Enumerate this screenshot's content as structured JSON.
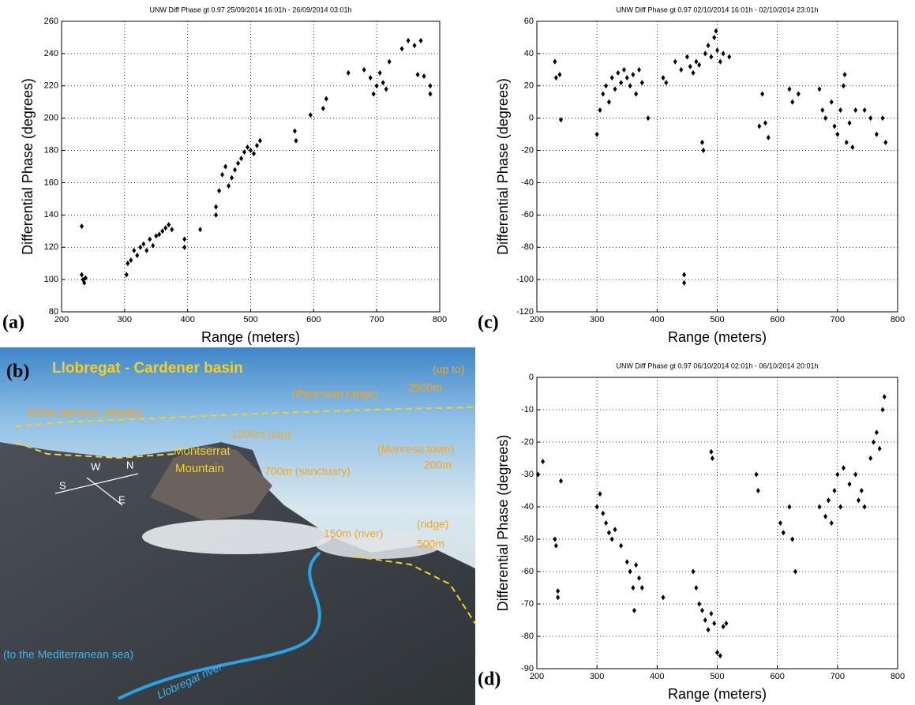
{
  "chart_data": [
    {
      "type": "scatter",
      "panel_label": "(a)",
      "title": "UNW Diff Phase gt 0.97 25/09/2014 16:01h - 26/09/2014 03:01h",
      "xlabel": "Range (meters)",
      "ylabel": "Differential  Phase (degrees)",
      "color": "#000000",
      "grid": true,
      "xlim": [
        200,
        800
      ],
      "ylim": [
        80,
        260
      ],
      "xticks": [
        200,
        300,
        400,
        500,
        600,
        700,
        800
      ],
      "yticks": [
        80,
        100,
        120,
        140,
        160,
        180,
        200,
        220,
        240,
        260
      ],
      "x": [
        232,
        232,
        234,
        236,
        238,
        303,
        305,
        310,
        315,
        320,
        325,
        330,
        335,
        340,
        345,
        350,
        355,
        360,
        365,
        370,
        375,
        395,
        395,
        420,
        445,
        445,
        450,
        455,
        460,
        465,
        470,
        475,
        480,
        485,
        490,
        495,
        500,
        505,
        510,
        515,
        570,
        572,
        595,
        615,
        620,
        655,
        680,
        690,
        695,
        700,
        705,
        710,
        715,
        720,
        740,
        750,
        760,
        770,
        765,
        775,
        785,
        785
      ],
      "values": [
        133,
        103,
        100,
        98,
        101,
        103,
        110,
        112,
        118,
        115,
        120,
        122,
        118,
        125,
        121,
        127,
        128,
        130,
        132,
        134,
        131,
        125,
        120,
        131,
        140,
        145,
        155,
        165,
        170,
        158,
        163,
        168,
        172,
        175,
        179,
        182,
        180,
        178,
        183,
        186,
        192,
        186,
        202,
        206,
        212,
        228,
        230,
        225,
        215,
        220,
        228,
        222,
        218,
        235,
        243,
        248,
        245,
        248,
        227,
        226,
        220,
        215
      ]
    },
    {
      "type": "scatter",
      "panel_label": "(c)",
      "title": "UNW Diff Phase gt 0.97 02/10/2014 16:01h - 02/10/2014 23:01h",
      "xlabel": "Range (meters)",
      "ylabel": "Differential  Phase (degrees)",
      "color": "#000000",
      "grid": true,
      "xlim": [
        200,
        800
      ],
      "ylim": [
        -120,
        60
      ],
      "xticks": [
        200,
        300,
        400,
        500,
        600,
        700,
        800
      ],
      "yticks": [
        -120,
        -100,
        -80,
        -60,
        -40,
        -20,
        0,
        20,
        40,
        60
      ],
      "x": [
        230,
        232,
        238,
        240,
        300,
        305,
        310,
        315,
        320,
        325,
        330,
        335,
        340,
        345,
        350,
        355,
        360,
        365,
        370,
        375,
        385,
        410,
        415,
        430,
        440,
        450,
        455,
        460,
        465,
        470,
        475,
        477,
        480,
        485,
        490,
        495,
        498,
        500,
        505,
        510,
        520,
        570,
        575,
        580,
        585,
        620,
        625,
        635,
        670,
        675,
        680,
        690,
        695,
        700,
        705,
        710,
        712,
        715,
        720,
        725,
        730,
        745,
        755,
        765,
        775,
        780,
        445,
        445
      ],
      "values": [
        35,
        25,
        27,
        -1,
        -10,
        5,
        15,
        20,
        10,
        25,
        18,
        28,
        22,
        30,
        25,
        20,
        27,
        15,
        30,
        22,
        0,
        25,
        22,
        35,
        30,
        38,
        32,
        28,
        35,
        33,
        -15,
        -20,
        40,
        45,
        38,
        50,
        54,
        42,
        35,
        40,
        38,
        -5,
        15,
        -3,
        -12,
        18,
        10,
        15,
        18,
        5,
        0,
        10,
        -5,
        -10,
        5,
        20,
        27,
        -15,
        -3,
        -18,
        5,
        5,
        0,
        -10,
        0,
        -15,
        -97,
        -102
      ]
    },
    {
      "type": "scatter",
      "panel_label": "(d)",
      "title": "UNW Diff Phase gt 0.97 06/10/2014 02:01h - 06/10/2014 20:01h",
      "xlabel": "Range (meters)",
      "ylabel": "Differential  Phase (degrees)",
      "color": "#000000",
      "grid": true,
      "xlim": [
        200,
        800
      ],
      "ylim": [
        -90,
        0
      ],
      "xticks": [
        200,
        300,
        400,
        500,
        600,
        700,
        800
      ],
      "yticks": [
        -90,
        -80,
        -70,
        -60,
        -50,
        -40,
        -30,
        -20,
        -10,
        0
      ],
      "x": [
        202,
        210,
        230,
        232,
        235,
        235,
        240,
        300,
        305,
        310,
        315,
        320,
        325,
        330,
        340,
        350,
        355,
        360,
        362,
        365,
        370,
        375,
        410,
        460,
        465,
        470,
        475,
        480,
        485,
        490,
        495,
        500,
        505,
        510,
        515,
        490,
        492,
        565,
        568,
        605,
        610,
        620,
        625,
        630,
        670,
        680,
        685,
        690,
        695,
        700,
        705,
        710,
        720,
        730,
        735,
        740,
        745,
        755,
        760,
        765,
        770,
        775,
        778
      ],
      "values": [
        -30,
        -26,
        -50,
        -52,
        -66,
        -68,
        -32,
        -40,
        -36,
        -42,
        -45,
        -48,
        -50,
        -47,
        -52,
        -57,
        -60,
        -65,
        -72,
        -58,
        -62,
        -65,
        -68,
        -60,
        -65,
        -70,
        -72,
        -75,
        -78,
        -73,
        -76,
        -85,
        -86,
        -77,
        -76,
        -23,
        -25,
        -30,
        -35,
        -45,
        -48,
        -40,
        -50,
        -60,
        -40,
        -43,
        -38,
        -45,
        -35,
        -30,
        -40,
        -28,
        -33,
        -30,
        -38,
        -35,
        -40,
        -25,
        -20,
        -17,
        -22,
        -10,
        -6
      ]
    }
  ],
  "photo": {
    "panel_label": "(b)",
    "title": "Llobregat - Cardener basin",
    "labels": [
      "(up to)",
      "2500m",
      "(Pyrenean range)",
      "600m (minimal altitude)",
      "1200m (top)",
      "(Manresa town)",
      "200m",
      "700m (sanctuary)",
      "150m (river)",
      "(ridge)",
      "500m"
    ],
    "mountain": [
      "Montserrat",
      "Mountain"
    ],
    "compass": [
      "W",
      "N",
      "S",
      "E"
    ],
    "sea": "(to the Mediterranean sea)",
    "river": "Llobregat river"
  }
}
